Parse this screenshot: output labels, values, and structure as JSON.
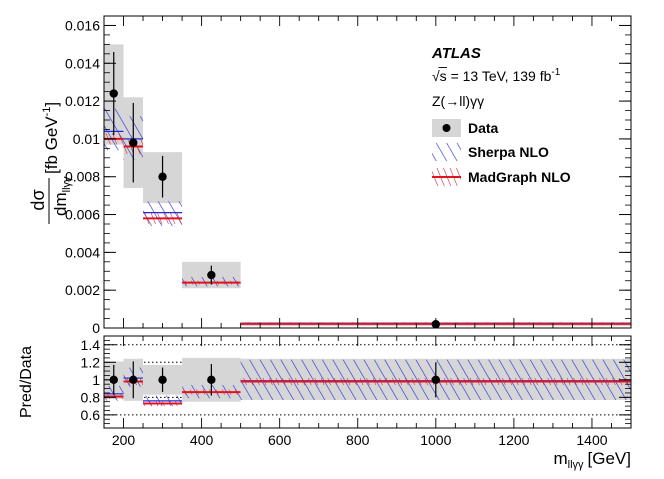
{
  "chart_data": {
    "type": "scatter",
    "x_unit": "GeV",
    "bins": [
      [
        150,
        200
      ],
      [
        200,
        250
      ],
      [
        250,
        350
      ],
      [
        350,
        500
      ],
      [
        500,
        1500
      ]
    ],
    "data_points": {
      "x": [
        175,
        225,
        300,
        425,
        1000
      ],
      "y": [
        0.0124,
        0.0098,
        0.008,
        0.0028,
        0.0002
      ],
      "stat_err": [
        0.0022,
        0.0021,
        0.0011,
        0.0005,
        0.0001
      ],
      "total_unc_band": [
        [
          0.0097,
          0.015
        ],
        [
          0.0074,
          0.0122
        ],
        [
          0.0066,
          0.0093
        ],
        [
          0.0021,
          0.0035
        ],
        [
          0.0001,
          0.0003
        ]
      ]
    },
    "series": [
      {
        "name": "Sherpa NLO",
        "values": [
          0.0104,
          0.01,
          0.0061,
          0.0024,
          0.00025
        ],
        "band_low": [
          0.0094,
          0.0089,
          0.0054,
          0.0022,
          0.0002
        ],
        "band_high": [
          0.0116,
          0.0112,
          0.0067,
          0.0027,
          0.0003
        ],
        "color": "#1e28dc"
      },
      {
        "name": "MadGraph NLO",
        "values": [
          0.01,
          0.0096,
          0.0058,
          0.0024,
          0.00022
        ],
        "band_low": [
          0.0097,
          0.0092,
          0.0055,
          0.0023,
          0.0002
        ],
        "band_high": [
          0.0103,
          0.01,
          0.0061,
          0.0025,
          0.00025
        ],
        "color": "#e0141e"
      }
    ],
    "ratio": {
      "ylabel": "Pred/Data",
      "ylim": [
        0.45,
        1.5
      ],
      "yticks": [
        0.6,
        0.8,
        1,
        1.2,
        1.4
      ],
      "data_points": [
        1.0,
        1.0,
        1.0,
        1.0,
        1.0
      ],
      "data_stat_err": [
        0.17,
        0.21,
        0.14,
        0.18,
        0.2
      ],
      "data_band": [
        [
          0.78,
          1.21
        ],
        [
          0.76,
          1.24
        ],
        [
          0.83,
          1.17
        ],
        [
          0.75,
          1.25
        ],
        [
          0.77,
          1.24
        ]
      ],
      "sherpa": {
        "values": [
          0.84,
          1.02,
          0.76,
          0.86,
          0.99
        ],
        "band_low": [
          0.76,
          0.92,
          0.7,
          0.79,
          0.77
        ],
        "band_high": [
          0.93,
          1.14,
          0.82,
          0.94,
          1.23
        ]
      },
      "madgraph": {
        "values": [
          0.81,
          0.98,
          0.73,
          0.86,
          0.98
        ],
        "band_low": [
          0.78,
          0.94,
          0.7,
          0.83,
          0.94
        ],
        "band_high": [
          0.84,
          1.02,
          0.76,
          0.89,
          1.02
        ]
      }
    },
    "xlim": [
      150,
      1500
    ],
    "ylim": [
      0,
      0.0165
    ],
    "xticks": [
      200,
      400,
      600,
      800,
      1000,
      1200,
      1400
    ],
    "xtick_labels": [
      "200",
      "400",
      "600",
      "800",
      "1000",
      "1200",
      "1400"
    ],
    "yticks": [
      0,
      0.002,
      0.004,
      0.006,
      0.008,
      0.01,
      0.012,
      0.014,
      0.016
    ],
    "ytick_labels": [
      "0",
      "0.002",
      "0.004",
      "0.006",
      "0.008",
      "0.01",
      "0.012",
      "0.014",
      "0.016"
    ],
    "ratio_ytick_labels": [
      "0.6",
      "0.8",
      "1",
      "1.2",
      "1.4"
    ],
    "ylabel_parts": {
      "numerator": "dσ",
      "denominator": "dm",
      "denominator_sub": "llγγ",
      "unit": "[fb GeV",
      "unit_sup": "-1",
      "unit_close": "]"
    },
    "xlabel_parts": {
      "main": "m",
      "sub": "llγγ",
      "unit": "[GeV]"
    },
    "annotations": {
      "experiment": "ATLAS",
      "sqrt_s": "√s = 13 TeV, 139 fb",
      "sqrt_s_sup": "-1",
      "process": "Z(→ll)γγ"
    },
    "legend": {
      "position": "top-right",
      "entries": [
        {
          "label": "Data",
          "kind": "data"
        },
        {
          "label": "Sherpa NLO",
          "kind": "sherpa"
        },
        {
          "label": "MadGraph NLO",
          "kind": "madgraph"
        }
      ]
    }
  }
}
